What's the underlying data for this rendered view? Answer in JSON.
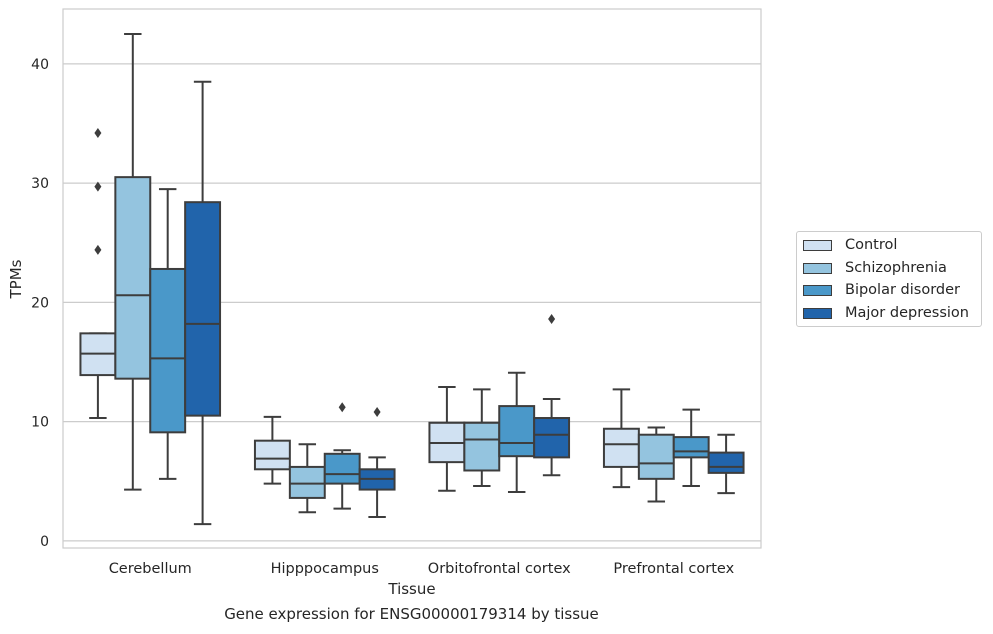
{
  "chart_data": {
    "type": "box",
    "xlabel": "Tissue",
    "ylabel": "TPMs",
    "caption": "Gene expression for ENSG00000179314 by tissue",
    "ylim": [
      -0.6,
      44.6
    ],
    "yticks": [
      0,
      10,
      20,
      30,
      40
    ],
    "grid": true,
    "legend_placement": "right",
    "categories": [
      "Cerebellum",
      "Hipppocampus",
      "Orbitofrontal cortex",
      "Prefrontal cortex"
    ],
    "series": [
      {
        "name": "Control",
        "color": "#d0e1f2",
        "boxes": [
          {
            "min": 10.3,
            "q1": 13.9,
            "median": 15.7,
            "q3": 17.4,
            "max": 17.4,
            "outliers": [
              24.4,
              29.7,
              34.2
            ]
          },
          {
            "min": 4.8,
            "q1": 6.0,
            "median": 6.9,
            "q3": 8.4,
            "max": 10.4,
            "outliers": []
          },
          {
            "min": 4.2,
            "q1": 6.6,
            "median": 8.2,
            "q3": 9.9,
            "max": 12.9,
            "outliers": []
          },
          {
            "min": 4.5,
            "q1": 6.2,
            "median": 8.1,
            "q3": 9.4,
            "max": 12.7,
            "outliers": []
          }
        ]
      },
      {
        "name": "Schizophrenia",
        "color": "#94c4df",
        "boxes": [
          {
            "min": 4.3,
            "q1": 13.6,
            "median": 20.6,
            "q3": 30.5,
            "max": 42.5,
            "outliers": []
          },
          {
            "min": 2.4,
            "q1": 3.6,
            "median": 4.8,
            "q3": 6.2,
            "max": 8.1,
            "outliers": []
          },
          {
            "min": 4.6,
            "q1": 5.9,
            "median": 8.5,
            "q3": 9.9,
            "max": 12.7,
            "outliers": []
          },
          {
            "min": 3.3,
            "q1": 5.2,
            "median": 6.5,
            "q3": 8.9,
            "max": 9.5,
            "outliers": []
          }
        ]
      },
      {
        "name": "Bipolar disorder",
        "color": "#4a98c9",
        "boxes": [
          {
            "min": 5.2,
            "q1": 9.1,
            "median": 15.3,
            "q3": 22.8,
            "max": 29.5,
            "outliers": []
          },
          {
            "min": 2.7,
            "q1": 4.8,
            "median": 5.6,
            "q3": 7.3,
            "max": 7.6,
            "outliers": [
              11.2
            ]
          },
          {
            "min": 4.1,
            "q1": 7.1,
            "median": 8.2,
            "q3": 11.3,
            "max": 14.1,
            "outliers": []
          },
          {
            "min": 4.6,
            "q1": 7.0,
            "median": 7.5,
            "q3": 8.7,
            "max": 11.0,
            "outliers": []
          }
        ]
      },
      {
        "name": "Major depression",
        "color": "#2164ab",
        "boxes": [
          {
            "min": 1.4,
            "q1": 10.5,
            "median": 18.2,
            "q3": 28.4,
            "max": 38.5,
            "outliers": []
          },
          {
            "min": 2.0,
            "q1": 4.3,
            "median": 5.2,
            "q3": 6.0,
            "max": 7.0,
            "outliers": [
              10.8
            ]
          },
          {
            "min": 5.5,
            "q1": 7.0,
            "median": 8.9,
            "q3": 10.3,
            "max": 11.9,
            "outliers": [
              18.6
            ]
          },
          {
            "min": 4.0,
            "q1": 5.7,
            "median": 6.2,
            "q3": 7.4,
            "max": 8.9,
            "outliers": []
          }
        ]
      }
    ]
  }
}
